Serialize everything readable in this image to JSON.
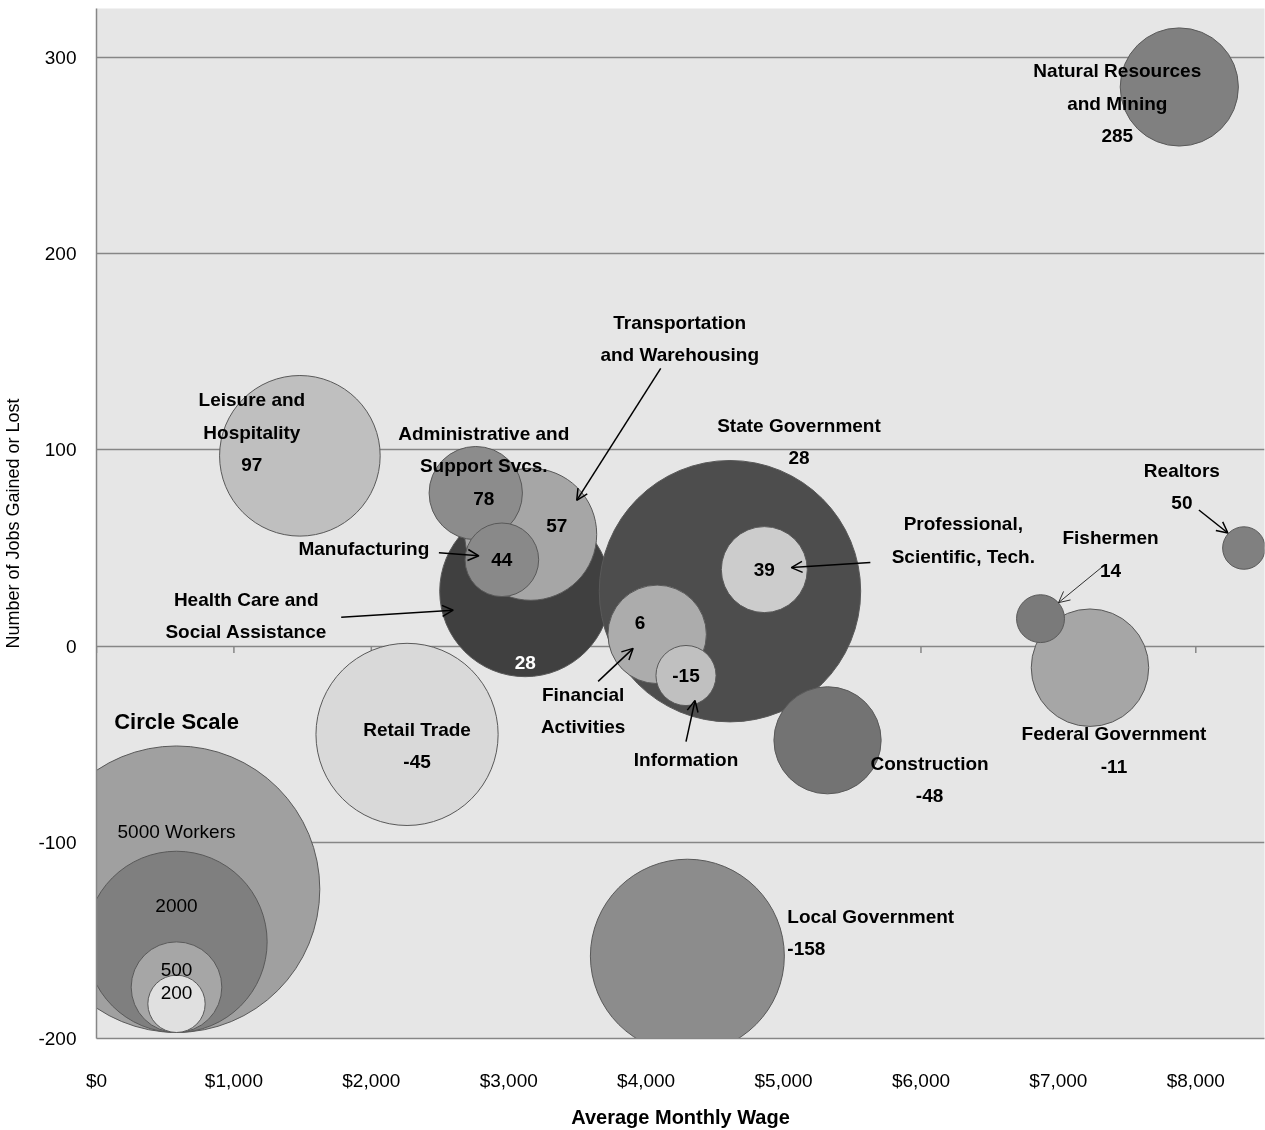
{
  "chart_data": {
    "type": "bubble",
    "xlabel": "Average Monthly Wage",
    "ylabel": "Number of Jobs Gained or Lost",
    "legend_title": "Circle Scale",
    "size_legend": [
      {
        "value": 5000,
        "label": "5000 Workers"
      },
      2000,
      500,
      200
    ],
    "xlim": [
      0,
      8500
    ],
    "ylim": [
      -200,
      325
    ],
    "xticks": [
      {
        "value": 0,
        "label": "$0"
      },
      {
        "value": 1000,
        "label": "$1,000"
      },
      {
        "value": 2000,
        "label": "$2,000"
      },
      {
        "value": 3000,
        "label": "$3,000"
      },
      {
        "value": 4000,
        "label": "$4,000"
      },
      {
        "value": 5000,
        "label": "$5,000"
      },
      {
        "value": 6000,
        "label": "$6,000"
      },
      {
        "value": 7000,
        "label": "$7,000"
      },
      {
        "value": 8000,
        "label": "$8,000"
      }
    ],
    "yticks": [
      -200,
      -100,
      0,
      100,
      200,
      300
    ],
    "grid": "y",
    "data_labels": true,
    "series": [
      {
        "name": "Local Government",
        "color": "#8c8c8c",
        "x": [
          4300
        ],
        "values": [
          -158
        ],
        "sizes": [
          2290
        ]
      },
      {
        "name": "Retail Trade",
        "color": "#d9d9d9",
        "x": [
          2260
        ],
        "values": [
          -45
        ],
        "sizes": [
          2020
        ]
      },
      {
        "name": "Leisure and Hospitality",
        "color": "#bfbfbf",
        "x": [
          1480
        ],
        "values": [
          97
        ],
        "sizes": [
          1570
        ]
      },
      {
        "name": "Health Care and Social Assistance",
        "color": "#404040",
        "x": [
          3120
        ],
        "values": [
          28
        ],
        "sizes": [
          1780
        ]
      },
      {
        "name": "State Government",
        "color": "#4d4d4d",
        "x": [
          4610
        ],
        "values": [
          28
        ],
        "sizes": [
          4160
        ]
      },
      {
        "name": "Transportation and Warehousing",
        "color": "#a6a6a6",
        "x": [
          3160
        ],
        "values": [
          57
        ],
        "sizes": [
          1060
        ]
      },
      {
        "name": "Administrative and Support Svcs.",
        "color": "#8c8c8c",
        "x": [
          2760
        ],
        "values": [
          78
        ],
        "sizes": [
          530
        ]
      },
      {
        "name": "Manufacturing",
        "color": "#898989",
        "x": [
          2950
        ],
        "values": [
          44
        ],
        "sizes": [
          330
        ]
      },
      {
        "name": "Financial Activities",
        "color": "#acacac",
        "x": [
          4080
        ],
        "values": [
          6
        ],
        "sizes": [
          590
        ]
      },
      {
        "name": "Information",
        "color": "#c0c0c0",
        "x": [
          4290
        ],
        "values": [
          -15
        ],
        "sizes": [
          220
        ]
      },
      {
        "name": "Professional, Scientific, Tech.",
        "color": "#cccccc",
        "x": [
          4860
        ],
        "values": [
          39
        ],
        "sizes": [
          450
        ]
      },
      {
        "name": "Construction",
        "color": "#737373",
        "x": [
          5320
        ],
        "values": [
          -48
        ],
        "sizes": [
          700
        ]
      },
      {
        "name": "Federal Government",
        "color": "#a6a6a6",
        "x": [
          7230
        ],
        "values": [
          -11
        ],
        "sizes": [
          840
        ]
      },
      {
        "name": "Fishermen",
        "color": "#7a7a7a",
        "x": [
          6870
        ],
        "values": [
          14
        ],
        "sizes": [
          140
        ]
      },
      {
        "name": "Realtors",
        "color": "#808080",
        "x": [
          8350
        ],
        "values": [
          50
        ],
        "sizes": [
          110
        ]
      },
      {
        "name": "Natural Resources and Mining",
        "color": "#808080",
        "x": [
          7880
        ],
        "values": [
          285
        ],
        "sizes": [
          850
        ]
      }
    ]
  }
}
